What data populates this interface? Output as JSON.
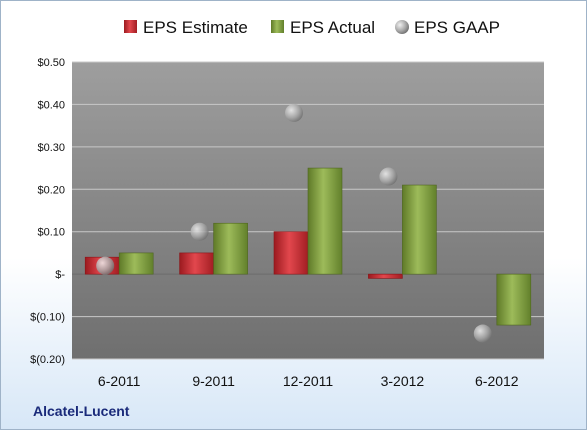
{
  "company": "Alcatel-Lucent",
  "legend": {
    "estimate": "EPS Estimate",
    "actual": "EPS Actual",
    "gaap": "EPS GAAP"
  },
  "chart_data": {
    "type": "bar",
    "categories": [
      "6-2011",
      "9-2011",
      "12-2011",
      "3-2012",
      "6-2012"
    ],
    "series": [
      {
        "name": "EPS Estimate",
        "values": [
          0.04,
          0.05,
          0.1,
          -0.01,
          null
        ],
        "color": "#c0262d"
      },
      {
        "name": "EPS Actual",
        "values": [
          0.05,
          0.12,
          0.25,
          0.21,
          -0.12
        ],
        "color": "#7d9a3a"
      },
      {
        "name": "EPS GAAP",
        "values": [
          0.02,
          0.1,
          0.38,
          0.23,
          -0.14
        ],
        "color": "#a6a6a6",
        "marker": "circle"
      }
    ],
    "ylim": [
      -0.2,
      0.5
    ],
    "yticks": [
      0.5,
      0.4,
      0.3,
      0.2,
      0.1,
      0,
      -0.1,
      -0.2
    ],
    "ytick_labels": [
      "$0.50",
      "$0.40",
      "$0.30",
      "$0.20",
      "$0.10",
      "$-",
      "$(0.10)",
      "$(0.20)"
    ],
    "legend_position": "top"
  }
}
